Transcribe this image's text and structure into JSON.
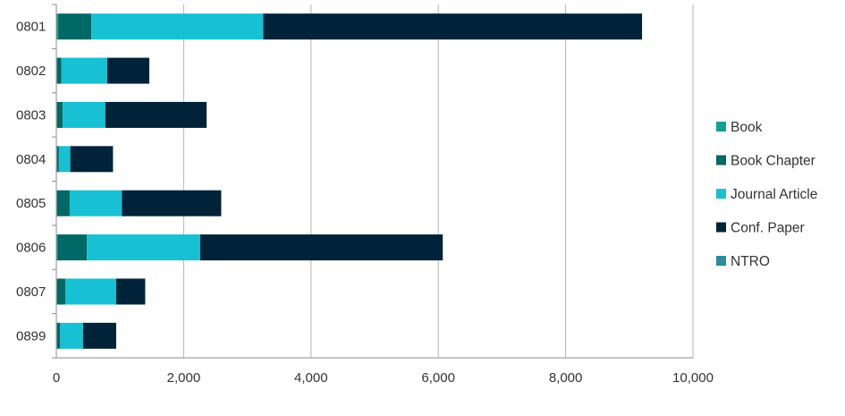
{
  "chart_data": {
    "type": "bar",
    "orientation": "horizontal",
    "stacked": true,
    "categories": [
      "0801",
      "0802",
      "0803",
      "0804",
      "0805",
      "0806",
      "0807",
      "0899"
    ],
    "series": [
      {
        "name": "Book",
        "color": "#13a08c",
        "values": [
          30,
          10,
          10,
          10,
          10,
          20,
          10,
          10
        ]
      },
      {
        "name": "Book Chapter",
        "color": "#006865",
        "values": [
          520,
          70,
          90,
          30,
          200,
          460,
          130,
          50
        ]
      },
      {
        "name": "Journal Article",
        "color": "#17c0d2",
        "values": [
          2700,
          720,
          670,
          180,
          820,
          1780,
          800,
          360
        ]
      },
      {
        "name": "Conf. Paper",
        "color": "#00233a",
        "values": [
          5950,
          660,
          1590,
          670,
          1560,
          3810,
          450,
          520
        ]
      },
      {
        "name": "NTRO",
        "color": "#2a8c9c",
        "values": [
          0,
          0,
          0,
          0,
          0,
          0,
          10,
          0
        ]
      }
    ],
    "xlim": [
      0,
      10000
    ],
    "xticks": [
      0,
      2000,
      4000,
      6000,
      8000,
      10000
    ],
    "xtick_labels": [
      "0",
      "2,000",
      "4,000",
      "6,000",
      "8,000",
      "10,000"
    ],
    "grid": "vertical",
    "legend_position": "right",
    "title": "",
    "xlabel": "",
    "ylabel": ""
  }
}
